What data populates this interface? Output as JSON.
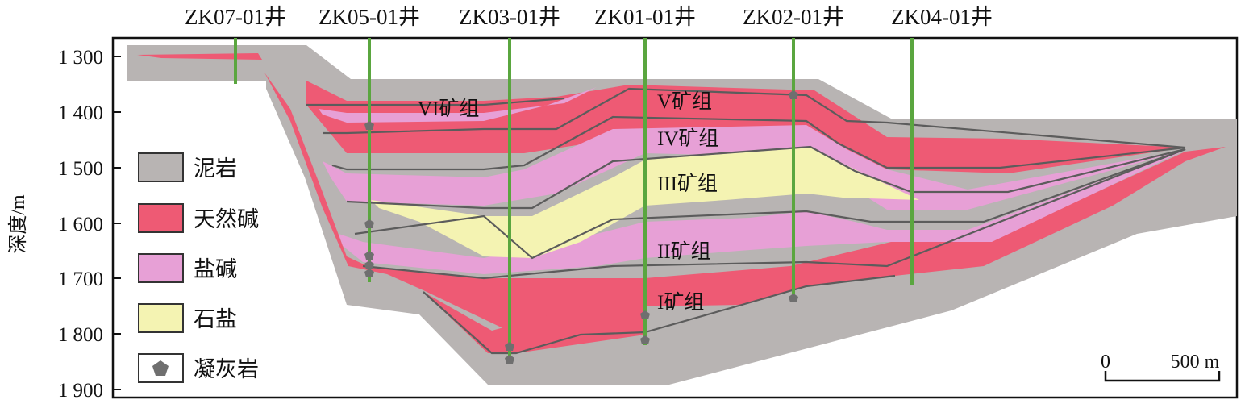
{
  "wells": [
    {
      "name": "ZK07-01井"
    },
    {
      "name": "ZK05-01井"
    },
    {
      "name": "ZK03-01井"
    },
    {
      "name": "ZK01-01井"
    },
    {
      "name": "ZK02-01井"
    },
    {
      "name": "ZK04-01井"
    }
  ],
  "y_axis": {
    "label": "深度/m",
    "ticks": [
      "1 300",
      "1 400",
      "1 500",
      "1 600",
      "1 700",
      "1 800",
      "1 900"
    ]
  },
  "groups": [
    "VI矿组",
    "V矿组",
    "IV矿组",
    "III矿组",
    "II矿组",
    "I矿组"
  ],
  "legend": [
    {
      "label": "泥岩",
      "color": "#b8b4b3"
    },
    {
      "label": "天然碱",
      "color": "#ee5a74"
    },
    {
      "label": "盐碱",
      "color": "#e7a0d6"
    },
    {
      "label": "石盐",
      "color": "#f4f3b2"
    },
    {
      "label": "凝灰岩",
      "color": "#6f6f6f"
    }
  ],
  "scale_bar": {
    "start": "0",
    "end": "500 m"
  },
  "colors": {
    "mudstone": "#b8b4b3",
    "trona": "#ee5a74",
    "saline_alkali": "#e7a0d6",
    "halite": "#f4f3b2",
    "tuff": "#6f6f6f",
    "well_line": "#5aa63f",
    "boundary": "#5c5c5c"
  }
}
